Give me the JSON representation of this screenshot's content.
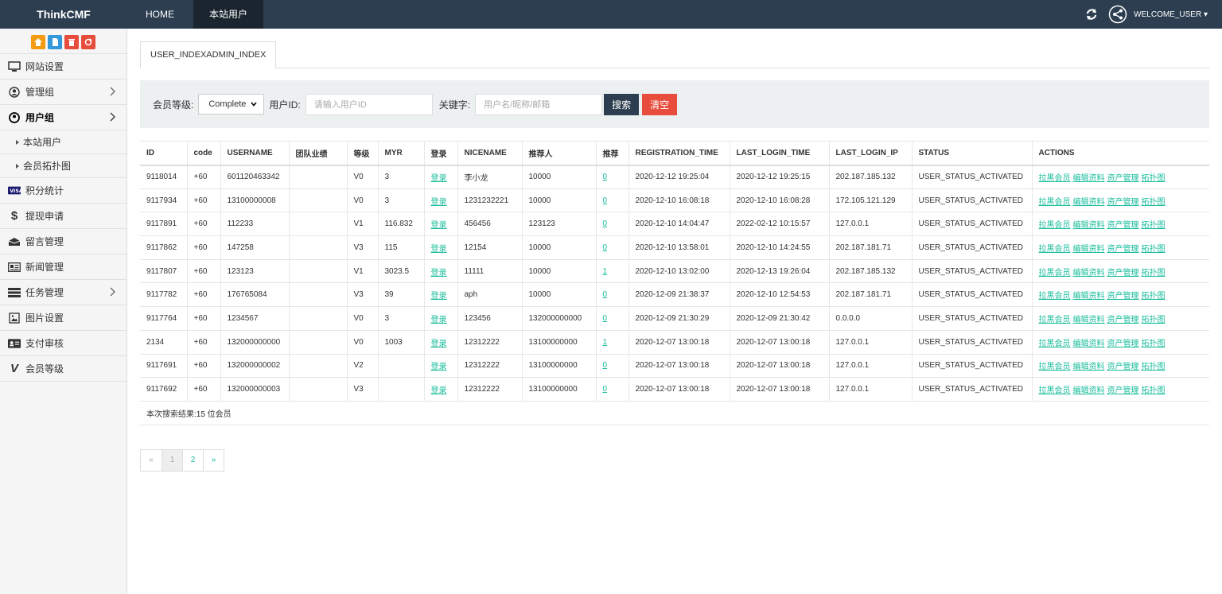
{
  "topbar": {
    "brand": "ThinkCMF",
    "nav": [
      "HOME",
      "本站用户"
    ],
    "welcome": "WELCOME_USER"
  },
  "sidebar": {
    "shortcut_colors": [
      "#f39c12",
      "#3498db",
      "#e74c3c",
      "#e74c3c"
    ],
    "items": [
      {
        "label": "网站设置",
        "icon": "monitor-icon"
      },
      {
        "label": "管理组",
        "icon": "user-circle-icon"
      },
      {
        "label": "用户组",
        "icon": "user-icon"
      },
      {
        "label": "积分统计",
        "icon": "visa-icon"
      },
      {
        "label": "提现申请",
        "icon": "dollar-icon"
      },
      {
        "label": "留言管理",
        "icon": "inbox-icon"
      },
      {
        "label": "新闻管理",
        "icon": "newspaper-icon"
      },
      {
        "label": "任务管理",
        "icon": "tasks-icon"
      },
      {
        "label": "图片设置",
        "icon": "image-icon"
      },
      {
        "label": "支付审核",
        "icon": "id-card-icon"
      },
      {
        "label": "会员等级",
        "icon": "vimeo-icon"
      }
    ],
    "sub_items": [
      "本站用户",
      "会员拓扑图"
    ]
  },
  "tab": {
    "label": "USER_INDEXADMIN_INDEX"
  },
  "filter": {
    "level_label": "会员等级:",
    "level_value": "Complete",
    "userid_label": "用户ID:",
    "userid_placeholder": "请输入用户ID",
    "keyword_label": "关键字:",
    "keyword_placeholder": "用户名/昵称/邮箱",
    "search_label": "搜索",
    "clear_label": "清空"
  },
  "table": {
    "headers": [
      "ID",
      "code",
      "USERNAME",
      "团队业绩",
      "等级",
      "MYR",
      "登录",
      "NICENAME",
      "推荐人",
      "推荐",
      "REGISTRATION_TIME",
      "LAST_LOGIN_TIME",
      "LAST_LOGIN_IP",
      "STATUS",
      "ACTIONS"
    ],
    "rows": [
      {
        "id": "9118014",
        "code": "+60",
        "username": "601120463342",
        "team": "",
        "level": "V0",
        "myr": "3",
        "login": "登录",
        "nicename": "李小龙",
        "referrer": "10000",
        "refer": "0",
        "reg": "2020-12-12 19:25:04",
        "last": "2020-12-12 19:25:15",
        "ip": "202.187.185.132",
        "status": "USER_STATUS_ACTIVATED"
      },
      {
        "id": "9117934",
        "code": "+60",
        "username": "13100000008",
        "team": "",
        "level": "V0",
        "myr": "3",
        "login": "登录",
        "nicename": "1231232221",
        "referrer": "10000",
        "refer": "0",
        "reg": "2020-12-10 16:08:18",
        "last": "2020-12-10 16:08:28",
        "ip": "172.105.121.129",
        "status": "USER_STATUS_ACTIVATED"
      },
      {
        "id": "9117891",
        "code": "+60",
        "username": "112233",
        "team": "",
        "level": "V1",
        "myr": "116.832",
        "login": "登录",
        "nicename": "456456",
        "referrer": "123123",
        "refer": "0",
        "reg": "2020-12-10 14:04:47",
        "last": "2022-02-12 10:15:57",
        "ip": "127.0.0.1",
        "status": "USER_STATUS_ACTIVATED"
      },
      {
        "id": "9117862",
        "code": "+60",
        "username": "147258",
        "team": "",
        "level": "V3",
        "myr": "115",
        "login": "登录",
        "nicename": "12154",
        "referrer": "10000",
        "refer": "0",
        "reg": "2020-12-10 13:58:01",
        "last": "2020-12-10 14:24:55",
        "ip": "202.187.181.71",
        "status": "USER_STATUS_ACTIVATED"
      },
      {
        "id": "9117807",
        "code": "+60",
        "username": "123123",
        "team": "",
        "level": "V1",
        "myr": "3023.5",
        "login": "登录",
        "nicename": "11111",
        "referrer": "10000",
        "refer": "1",
        "reg": "2020-12-10 13:02:00",
        "last": "2020-12-13 19:26:04",
        "ip": "202.187.185.132",
        "status": "USER_STATUS_ACTIVATED"
      },
      {
        "id": "9117782",
        "code": "+60",
        "username": "176765084",
        "team": "",
        "level": "V3",
        "myr": "39",
        "login": "登录",
        "nicename": "aph",
        "referrer": "10000",
        "refer": "0",
        "reg": "2020-12-09 21:38:37",
        "last": "2020-12-10 12:54:53",
        "ip": "202.187.181.71",
        "status": "USER_STATUS_ACTIVATED"
      },
      {
        "id": "9117764",
        "code": "+60",
        "username": "1234567",
        "team": "",
        "level": "V0",
        "myr": "3",
        "login": "登录",
        "nicename": "123456",
        "referrer": "132000000000",
        "refer": "0",
        "reg": "2020-12-09 21:30:29",
        "last": "2020-12-09 21:30:42",
        "ip": "0.0.0.0",
        "status": "USER_STATUS_ACTIVATED"
      },
      {
        "id": "2134",
        "code": "+60",
        "username": "132000000000",
        "team": "",
        "level": "V0",
        "myr": "1003",
        "login": "登录",
        "nicename": "12312222",
        "referrer": "13100000000",
        "refer": "1",
        "reg": "2020-12-07 13:00:18",
        "last": "2020-12-07 13:00:18",
        "ip": "127.0.0.1",
        "status": "USER_STATUS_ACTIVATED"
      },
      {
        "id": "9117691",
        "code": "+60",
        "username": "132000000002",
        "team": "",
        "level": "V2",
        "myr": "",
        "login": "登录",
        "nicename": "12312222",
        "referrer": "13100000000",
        "refer": "0",
        "reg": "2020-12-07 13:00:18",
        "last": "2020-12-07 13:00:18",
        "ip": "127.0.0.1",
        "status": "USER_STATUS_ACTIVATED"
      },
      {
        "id": "9117692",
        "code": "+60",
        "username": "132000000003",
        "team": "",
        "level": "V3",
        "myr": "",
        "login": "登录",
        "nicename": "12312222",
        "referrer": "13100000000",
        "refer": "0",
        "reg": "2020-12-07 13:00:18",
        "last": "2020-12-07 13:00:18",
        "ip": "127.0.0.1",
        "status": "USER_STATUS_ACTIVATED"
      }
    ],
    "actions": [
      "拉黑会员",
      "编辑资料",
      "资产管理",
      "拓扑图"
    ],
    "summary": "本次搜索结果:15 位会员"
  },
  "pagination": {
    "prev": "«",
    "pages": [
      "1",
      "2"
    ],
    "next": "»",
    "current": "1"
  },
  "colors": {
    "topbar": "#2c3e50",
    "link": "#18bc9c",
    "danger": "#e74c3c",
    "filter_bg": "#ecf0f1"
  }
}
